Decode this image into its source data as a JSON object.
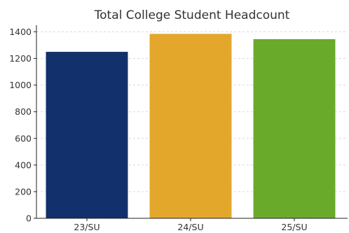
{
  "chart_data": {
    "type": "bar",
    "title": "Total College Student Headcount",
    "xlabel": "",
    "ylabel": "",
    "categories": [
      "23/SU",
      "24/SU",
      "25/SU"
    ],
    "values": [
      1250,
      1385,
      1345
    ],
    "colors": [
      "#12306b",
      "#e3a82b",
      "#6aaa2a"
    ],
    "ylim": [
      0,
      1450
    ],
    "yticks": [
      0,
      200,
      400,
      600,
      800,
      1000,
      1200,
      1400
    ],
    "grid": true,
    "legend": "none"
  }
}
